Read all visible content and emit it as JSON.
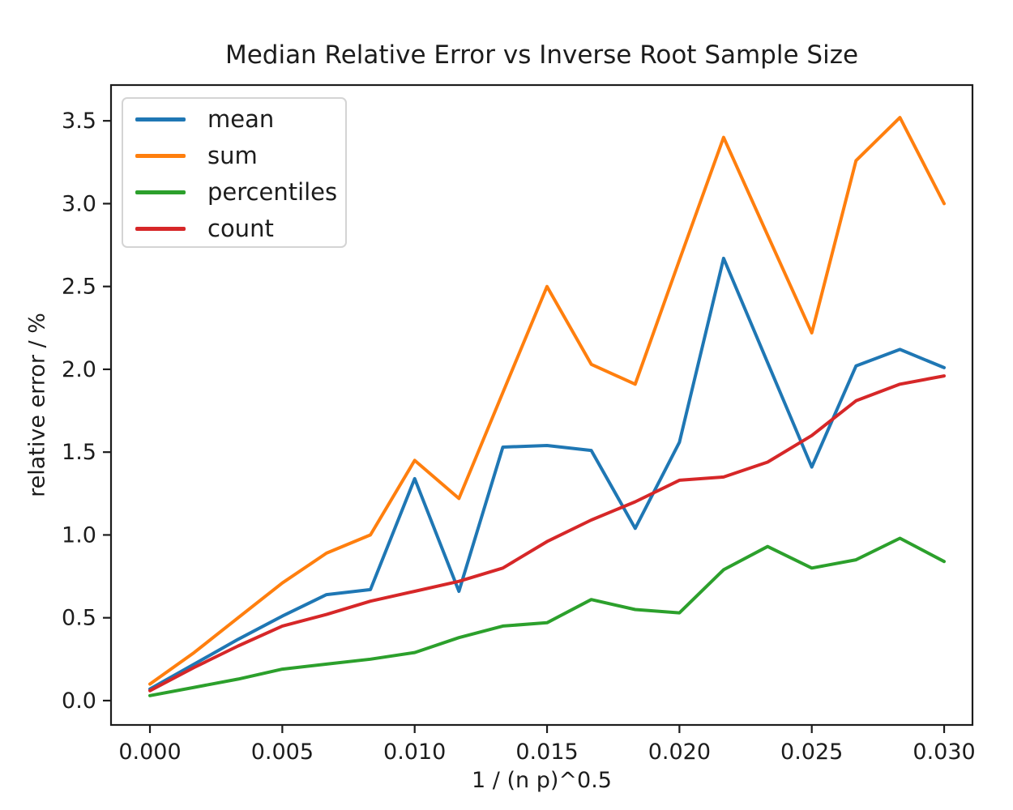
{
  "chart_data": {
    "type": "line",
    "title": "Median Relative Error vs Inverse Root Sample Size",
    "xlabel": "1 / (n p)^0.5",
    "ylabel": "relative error / %",
    "grid": false,
    "legend_position": "upper left",
    "xlim": [
      -0.00147,
      0.03107
    ],
    "ylim": [
      -0.147,
      3.716
    ],
    "xticks": {
      "values": [
        0.0,
        0.005,
        0.01,
        0.015,
        0.02,
        0.025,
        0.03
      ],
      "labels": [
        "0.000",
        "0.005",
        "0.010",
        "0.015",
        "0.020",
        "0.025",
        "0.030"
      ]
    },
    "yticks": {
      "values": [
        0.0,
        0.5,
        1.0,
        1.5,
        2.0,
        2.5,
        3.0,
        3.5
      ],
      "labels": [
        "0.0",
        "0.5",
        "1.0",
        "1.5",
        "2.0",
        "2.5",
        "3.0",
        "3.5"
      ]
    },
    "x": [
      0.0,
      0.00167,
      0.00333,
      0.005,
      0.00667,
      0.00833,
      0.01,
      0.01167,
      0.01333,
      0.015,
      0.01667,
      0.01833,
      0.02,
      0.02167,
      0.02333,
      0.025,
      0.02667,
      0.02833,
      0.03
    ],
    "series": [
      {
        "name": "mean",
        "color": "#1f77b4",
        "values": [
          0.07,
          0.22,
          0.37,
          0.51,
          0.64,
          0.67,
          1.34,
          0.66,
          1.53,
          1.54,
          1.51,
          1.04,
          1.56,
          2.67,
          2.04,
          1.41,
          2.02,
          2.12,
          2.01
        ]
      },
      {
        "name": "sum",
        "color": "#ff7f0e",
        "values": [
          0.1,
          0.29,
          0.5,
          0.71,
          0.89,
          1.0,
          1.45,
          1.22,
          1.86,
          2.5,
          2.03,
          1.91,
          2.66,
          3.4,
          2.81,
          2.22,
          3.26,
          3.52,
          3.0
        ]
      },
      {
        "name": "percentiles",
        "color": "#2ca02c",
        "values": [
          0.03,
          0.08,
          0.13,
          0.19,
          0.22,
          0.25,
          0.29,
          0.38,
          0.45,
          0.47,
          0.61,
          0.55,
          0.53,
          0.79,
          0.93,
          0.8,
          0.85,
          0.98,
          0.84
        ]
      },
      {
        "name": "count",
        "color": "#d62728",
        "values": [
          0.06,
          0.2,
          0.33,
          0.45,
          0.52,
          0.6,
          0.66,
          0.72,
          0.8,
          0.96,
          1.09,
          1.2,
          1.33,
          1.35,
          1.44,
          1.6,
          1.81,
          1.91,
          1.96
        ]
      }
    ]
  }
}
